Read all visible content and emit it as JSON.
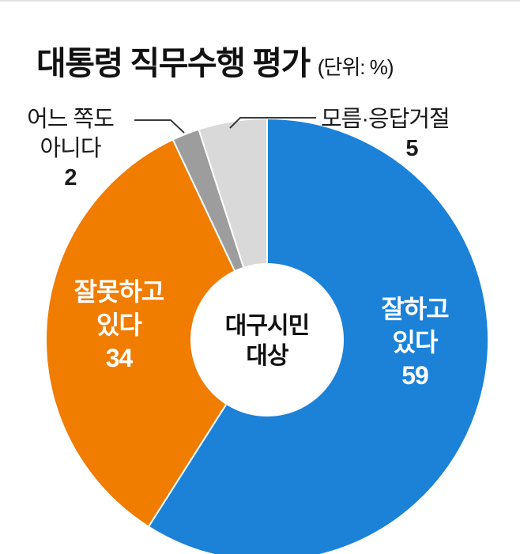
{
  "title": {
    "text": "대통령 직무수행 평가",
    "unit": "(단위: %)"
  },
  "center": {
    "line1": "대구시민",
    "line2": "대상"
  },
  "callouts": {
    "neither": {
      "line1": "어느 쪽도",
      "line2": "아니다",
      "value": "2"
    },
    "unknown": {
      "label": "모름·응답거절",
      "value": "5"
    }
  },
  "pie_labels": {
    "approve": {
      "line1": "잘하고",
      "line2": "있다",
      "value": "59"
    },
    "disapprove": {
      "line1": "잘못하고",
      "line2": "있다",
      "value": "34"
    }
  },
  "chart_data": {
    "type": "pie",
    "title": "대통령 직무수행 평가",
    "unit": "단위: %",
    "donut": true,
    "start_angle_deg": 0,
    "direction": "clockwise",
    "center_label": "대구시민 대상",
    "slices": [
      {
        "label": "잘하고 있다",
        "value": 59,
        "color": "#1b82d8"
      },
      {
        "label": "잘못하고 있다",
        "value": 34,
        "color": "#f07c00"
      },
      {
        "label": "어느 쪽도 아니다",
        "value": 2,
        "color": "#9d9d9d"
      },
      {
        "label": "모름·응답거절",
        "value": 5,
        "color": "#d9d9d9"
      }
    ]
  }
}
